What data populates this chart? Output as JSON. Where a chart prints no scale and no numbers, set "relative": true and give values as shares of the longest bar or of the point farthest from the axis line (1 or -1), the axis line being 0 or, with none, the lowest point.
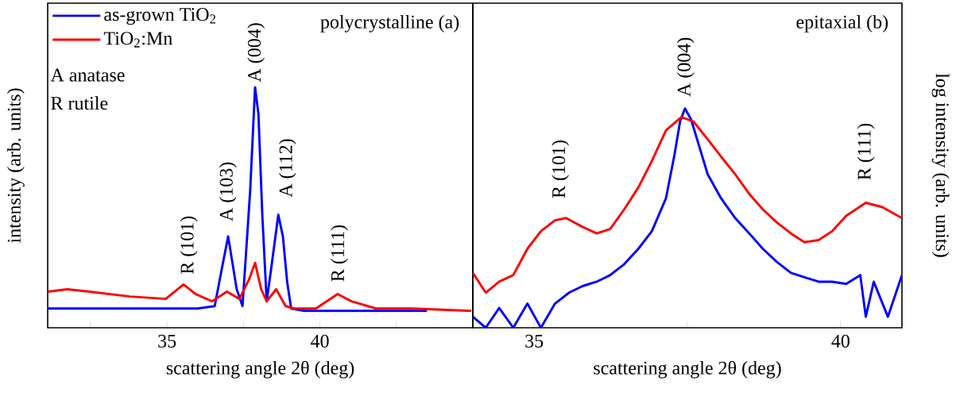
{
  "chart_data": [
    {
      "type": "line",
      "title": "polycrystalline (a)",
      "xlabel": "scattering angle 2θ (deg)",
      "ylabel": "intensity (arb. units)",
      "relative": true,
      "legend": "top left",
      "marker": "none",
      "line_style": "solid",
      "xlim": [
        31.1,
        45
      ],
      "xticks": [
        {
          "value": 32.5,
          "label": null
        },
        35,
        {
          "value": 37.5,
          "label": null
        },
        40,
        {
          "value": 42.5,
          "label": null
        }
      ],
      "series": [
        {
          "name": "as-grown TiO$_{2}$",
          "color": "#0000ff",
          "x": [
            31.12,
            32.0,
            33.0,
            34.0,
            35.0,
            36.0,
            36.56,
            36.8,
            37.0,
            37.28,
            37.47,
            37.72,
            37.88,
            37.99,
            38.12,
            38.26,
            38.39,
            38.64,
            38.79,
            38.93,
            39.06,
            39.5,
            40.5,
            41.5,
            42.5,
            43.5
          ],
          "values": [
            0.08,
            0.08,
            0.08,
            0.08,
            0.08,
            0.08,
            0.09,
            0.25,
            0.38,
            0.16,
            0.09,
            0.57,
            1.0,
            0.89,
            0.46,
            0.11,
            0.23,
            0.47,
            0.38,
            0.19,
            0.08,
            0.07,
            0.07,
            0.07,
            0.07,
            0.07
          ]
        },
        {
          "name": "TiO$_{2}$:Mn",
          "color": "#ff0000",
          "x": [
            31.12,
            31.74,
            32.46,
            33.79,
            34.96,
            35.54,
            35.94,
            36.47,
            36.96,
            37.37,
            37.68,
            37.88,
            38.08,
            38.26,
            38.57,
            38.88,
            39.15,
            39.87,
            40.58,
            41.03,
            41.83,
            43.0,
            44.95
          ],
          "values": [
            0.15,
            0.16,
            0.15,
            0.13,
            0.12,
            0.18,
            0.14,
            0.11,
            0.15,
            0.12,
            0.2,
            0.27,
            0.16,
            0.11,
            0.16,
            0.09,
            0.08,
            0.08,
            0.14,
            0.11,
            0.08,
            0.08,
            0.07
          ]
        }
      ],
      "annotations": [
        "R (101)",
        "A (103)",
        "A (004)",
        "A (112)",
        "R (111)",
        "A anatase",
        "R rutile"
      ]
    },
    {
      "type": "line",
      "title": "epitaxial (b)",
      "xlabel": "scattering angle 2θ (deg)",
      "ylabel": "log intensity (arb. units)",
      "relative": true,
      "marker": "none",
      "line_style": "solid",
      "xlim": [
        34,
        41
      ],
      "xticks": [
        35,
        {
          "value": 37.5,
          "label": null
        },
        40
      ],
      "series": [
        {
          "color": "#0000ff",
          "x": [
            34.0,
            34.21,
            34.43,
            34.66,
            34.89,
            35.11,
            35.34,
            35.57,
            35.79,
            36.02,
            36.24,
            36.47,
            36.7,
            36.92,
            37.15,
            37.29,
            37.38,
            37.46,
            37.56,
            37.69,
            37.83,
            38.05,
            38.28,
            38.51,
            38.73,
            38.96,
            39.19,
            39.41,
            39.64,
            39.86,
            40.09,
            40.32,
            40.41,
            40.54,
            40.77,
            41.0
          ],
          "values": [
            0.05,
            0.0,
            0.09,
            0.0,
            0.11,
            0.0,
            0.11,
            0.16,
            0.19,
            0.21,
            0.24,
            0.29,
            0.36,
            0.44,
            0.59,
            0.79,
            0.94,
            1.0,
            0.95,
            0.83,
            0.7,
            0.59,
            0.5,
            0.43,
            0.36,
            0.3,
            0.25,
            0.23,
            0.21,
            0.21,
            0.2,
            0.24,
            0.05,
            0.21,
            0.05,
            0.24
          ]
        },
        {
          "color": "#ff0000",
          "x": [
            34.0,
            34.21,
            34.43,
            34.66,
            34.89,
            35.11,
            35.34,
            35.52,
            35.79,
            36.02,
            36.24,
            36.47,
            36.7,
            36.92,
            37.15,
            37.4,
            37.6,
            37.83,
            38.05,
            38.28,
            38.51,
            38.73,
            38.96,
            39.19,
            39.41,
            39.64,
            39.86,
            40.09,
            40.41,
            40.68,
            41.0
          ],
          "values": [
            0.25,
            0.16,
            0.21,
            0.24,
            0.36,
            0.44,
            0.49,
            0.5,
            0.46,
            0.43,
            0.45,
            0.54,
            0.64,
            0.76,
            0.9,
            0.96,
            0.94,
            0.86,
            0.78,
            0.7,
            0.61,
            0.54,
            0.48,
            0.43,
            0.39,
            0.4,
            0.44,
            0.51,
            0.57,
            0.55,
            0.5
          ]
        }
      ],
      "annotations": [
        "R (101)",
        "A (004)",
        "R (111)"
      ]
    }
  ]
}
